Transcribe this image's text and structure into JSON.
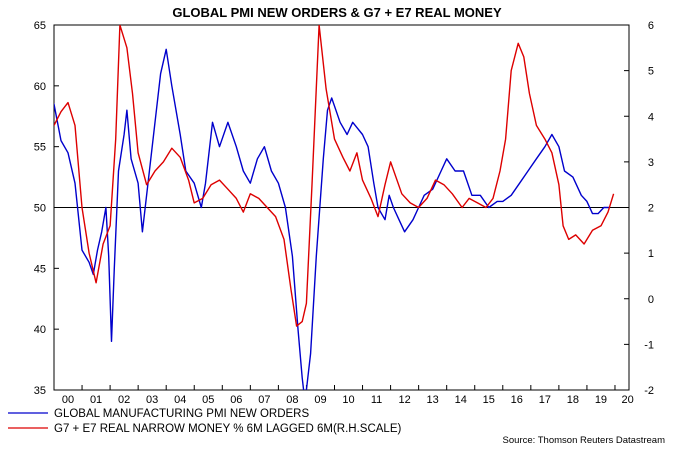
{
  "chart_data": {
    "type": "line",
    "title": "GLOBAL PMI NEW ORDERS & G7 + E7 REAL MONEY",
    "source": "Source: Thomson Reuters Datastream",
    "x_tick_labels": [
      "00",
      "01",
      "02",
      "03",
      "04",
      "05",
      "06",
      "07",
      "08",
      "09",
      "10",
      "11",
      "12",
      "13",
      "14",
      "15",
      "16",
      "17",
      "18",
      "19",
      "20"
    ],
    "xlim": [
      2000.0,
      2020.5
    ],
    "y_left": {
      "ylim": [
        35,
        65
      ],
      "ticks": [
        35,
        40,
        45,
        50,
        55,
        60,
        65
      ],
      "labels": [
        "35",
        "40",
        "45",
        "50",
        "55",
        "60",
        "65"
      ]
    },
    "y_right": {
      "ylim": [
        -2,
        6
      ],
      "ticks": [
        -2,
        -1,
        0,
        1,
        2,
        3,
        4,
        5,
        6
      ],
      "labels": [
        "-2",
        "-1",
        "0",
        "1",
        "2",
        "3",
        "4",
        "5",
        "6"
      ]
    },
    "reference_line": {
      "axis": "left",
      "value": 50
    },
    "series": [
      {
        "name": "GLOBAL MANUFACTURING PMI NEW ORDERS",
        "axis": "left",
        "color": "#0000cc",
        "points": [
          [
            1999.8,
            59
          ],
          [
            2000.0,
            58.5
          ],
          [
            2000.25,
            55.5
          ],
          [
            2000.5,
            54.5
          ],
          [
            2000.75,
            52
          ],
          [
            2001.0,
            46.5
          ],
          [
            2001.25,
            45.5
          ],
          [
            2001.4,
            44.5
          ],
          [
            2001.55,
            46.5
          ],
          [
            2001.7,
            48
          ],
          [
            2001.85,
            50
          ],
          [
            2001.95,
            46
          ],
          [
            2002.05,
            39
          ],
          [
            2002.15,
            45
          ],
          [
            2002.3,
            53
          ],
          [
            2002.5,
            56
          ],
          [
            2002.6,
            58
          ],
          [
            2002.75,
            54
          ],
          [
            2003.0,
            52
          ],
          [
            2003.15,
            48
          ],
          [
            2003.35,
            52
          ],
          [
            2003.6,
            57
          ],
          [
            2003.8,
            61
          ],
          [
            2004.0,
            63
          ],
          [
            2004.2,
            60
          ],
          [
            2004.5,
            56
          ],
          [
            2004.7,
            53
          ],
          [
            2005.0,
            52
          ],
          [
            2005.25,
            50
          ],
          [
            2005.4,
            52
          ],
          [
            2005.65,
            57
          ],
          [
            2005.9,
            55
          ],
          [
            2006.2,
            57
          ],
          [
            2006.5,
            55
          ],
          [
            2006.75,
            53
          ],
          [
            2007.0,
            52
          ],
          [
            2007.25,
            54
          ],
          [
            2007.5,
            55
          ],
          [
            2007.75,
            53
          ],
          [
            2008.0,
            52
          ],
          [
            2008.25,
            50
          ],
          [
            2008.5,
            46
          ],
          [
            2008.7,
            40
          ],
          [
            2008.85,
            36
          ],
          [
            2008.95,
            34
          ],
          [
            2009.15,
            38
          ],
          [
            2009.35,
            46
          ],
          [
            2009.6,
            54
          ],
          [
            2009.75,
            58
          ],
          [
            2009.9,
            59
          ],
          [
            2010.2,
            57
          ],
          [
            2010.45,
            56
          ],
          [
            2010.65,
            57
          ],
          [
            2011.0,
            56
          ],
          [
            2011.2,
            55
          ],
          [
            2011.4,
            52
          ],
          [
            2011.55,
            50
          ],
          [
            2011.8,
            49
          ],
          [
            2011.95,
            51
          ],
          [
            2012.1,
            50
          ],
          [
            2012.3,
            49
          ],
          [
            2012.5,
            48
          ],
          [
            2012.8,
            49
          ],
          [
            2013.0,
            50
          ],
          [
            2013.2,
            51
          ],
          [
            2013.5,
            51.5
          ],
          [
            2013.8,
            53
          ],
          [
            2014.0,
            54
          ],
          [
            2014.3,
            53
          ],
          [
            2014.6,
            53
          ],
          [
            2014.9,
            51
          ],
          [
            2015.2,
            51
          ],
          [
            2015.5,
            50
          ],
          [
            2015.8,
            50.5
          ],
          [
            2016.0,
            50.5
          ],
          [
            2016.3,
            51
          ],
          [
            2016.6,
            52
          ],
          [
            2016.9,
            53
          ],
          [
            2017.2,
            54
          ],
          [
            2017.5,
            55
          ],
          [
            2017.75,
            56
          ],
          [
            2018.0,
            55
          ],
          [
            2018.2,
            53
          ],
          [
            2018.5,
            52.5
          ],
          [
            2018.8,
            51
          ],
          [
            2019.0,
            50.5
          ],
          [
            2019.2,
            49.5
          ],
          [
            2019.4,
            49.5
          ],
          [
            2019.6,
            50
          ],
          [
            2019.8,
            50
          ]
        ]
      },
      {
        "name": "G7 + E7 REAL NARROW MONEY % 6M LAGGED 6M(R.H.SCALE)",
        "axis": "right",
        "color": "#dd0000",
        "points": [
          [
            1999.8,
            4.0
          ],
          [
            2000.0,
            3.8
          ],
          [
            2000.25,
            4.1
          ],
          [
            2000.5,
            4.3
          ],
          [
            2000.75,
            3.8
          ],
          [
            2001.0,
            2.0
          ],
          [
            2001.25,
            1.0
          ],
          [
            2001.5,
            0.35
          ],
          [
            2001.75,
            1.2
          ],
          [
            2002.0,
            1.6
          ],
          [
            2002.2,
            3.5
          ],
          [
            2002.35,
            6.0
          ],
          [
            2002.6,
            5.5
          ],
          [
            2002.8,
            4.5
          ],
          [
            2003.0,
            3.2
          ],
          [
            2003.3,
            2.5
          ],
          [
            2003.6,
            2.8
          ],
          [
            2003.9,
            3.0
          ],
          [
            2004.2,
            3.3
          ],
          [
            2004.5,
            3.1
          ],
          [
            2004.8,
            2.6
          ],
          [
            2005.0,
            2.1
          ],
          [
            2005.3,
            2.2
          ],
          [
            2005.6,
            2.5
          ],
          [
            2005.9,
            2.6
          ],
          [
            2006.2,
            2.4
          ],
          [
            2006.5,
            2.2
          ],
          [
            2006.75,
            1.9
          ],
          [
            2007.0,
            2.3
          ],
          [
            2007.3,
            2.2
          ],
          [
            2007.6,
            2.0
          ],
          [
            2007.9,
            1.8
          ],
          [
            2008.2,
            1.3
          ],
          [
            2008.45,
            0.2
          ],
          [
            2008.65,
            -0.6
          ],
          [
            2008.85,
            -0.5
          ],
          [
            2009.0,
            -0.1
          ],
          [
            2009.2,
            2.5
          ],
          [
            2009.45,
            6.0
          ],
          [
            2009.7,
            4.6
          ],
          [
            2010.0,
            3.5
          ],
          [
            2010.3,
            3.1
          ],
          [
            2010.55,
            2.8
          ],
          [
            2010.8,
            3.2
          ],
          [
            2011.0,
            2.6
          ],
          [
            2011.3,
            2.2
          ],
          [
            2011.55,
            1.8
          ],
          [
            2011.8,
            2.5
          ],
          [
            2012.0,
            3.0
          ],
          [
            2012.4,
            2.3
          ],
          [
            2012.7,
            2.1
          ],
          [
            2013.0,
            2.0
          ],
          [
            2013.3,
            2.2
          ],
          [
            2013.6,
            2.6
          ],
          [
            2013.9,
            2.5
          ],
          [
            2014.2,
            2.3
          ],
          [
            2014.55,
            2.0
          ],
          [
            2014.8,
            2.2
          ],
          [
            2015.1,
            2.1
          ],
          [
            2015.4,
            2.0
          ],
          [
            2015.65,
            2.2
          ],
          [
            2015.9,
            2.8
          ],
          [
            2016.1,
            3.5
          ],
          [
            2016.3,
            5.0
          ],
          [
            2016.55,
            5.6
          ],
          [
            2016.75,
            5.3
          ],
          [
            2016.95,
            4.5
          ],
          [
            2017.2,
            3.8
          ],
          [
            2017.5,
            3.5
          ],
          [
            2017.75,
            3.2
          ],
          [
            2018.0,
            2.5
          ],
          [
            2018.15,
            1.6
          ],
          [
            2018.35,
            1.3
          ],
          [
            2018.6,
            1.4
          ],
          [
            2018.9,
            1.2
          ],
          [
            2019.2,
            1.5
          ],
          [
            2019.5,
            1.6
          ],
          [
            2019.75,
            1.9
          ],
          [
            2019.95,
            2.3
          ]
        ]
      }
    ]
  }
}
